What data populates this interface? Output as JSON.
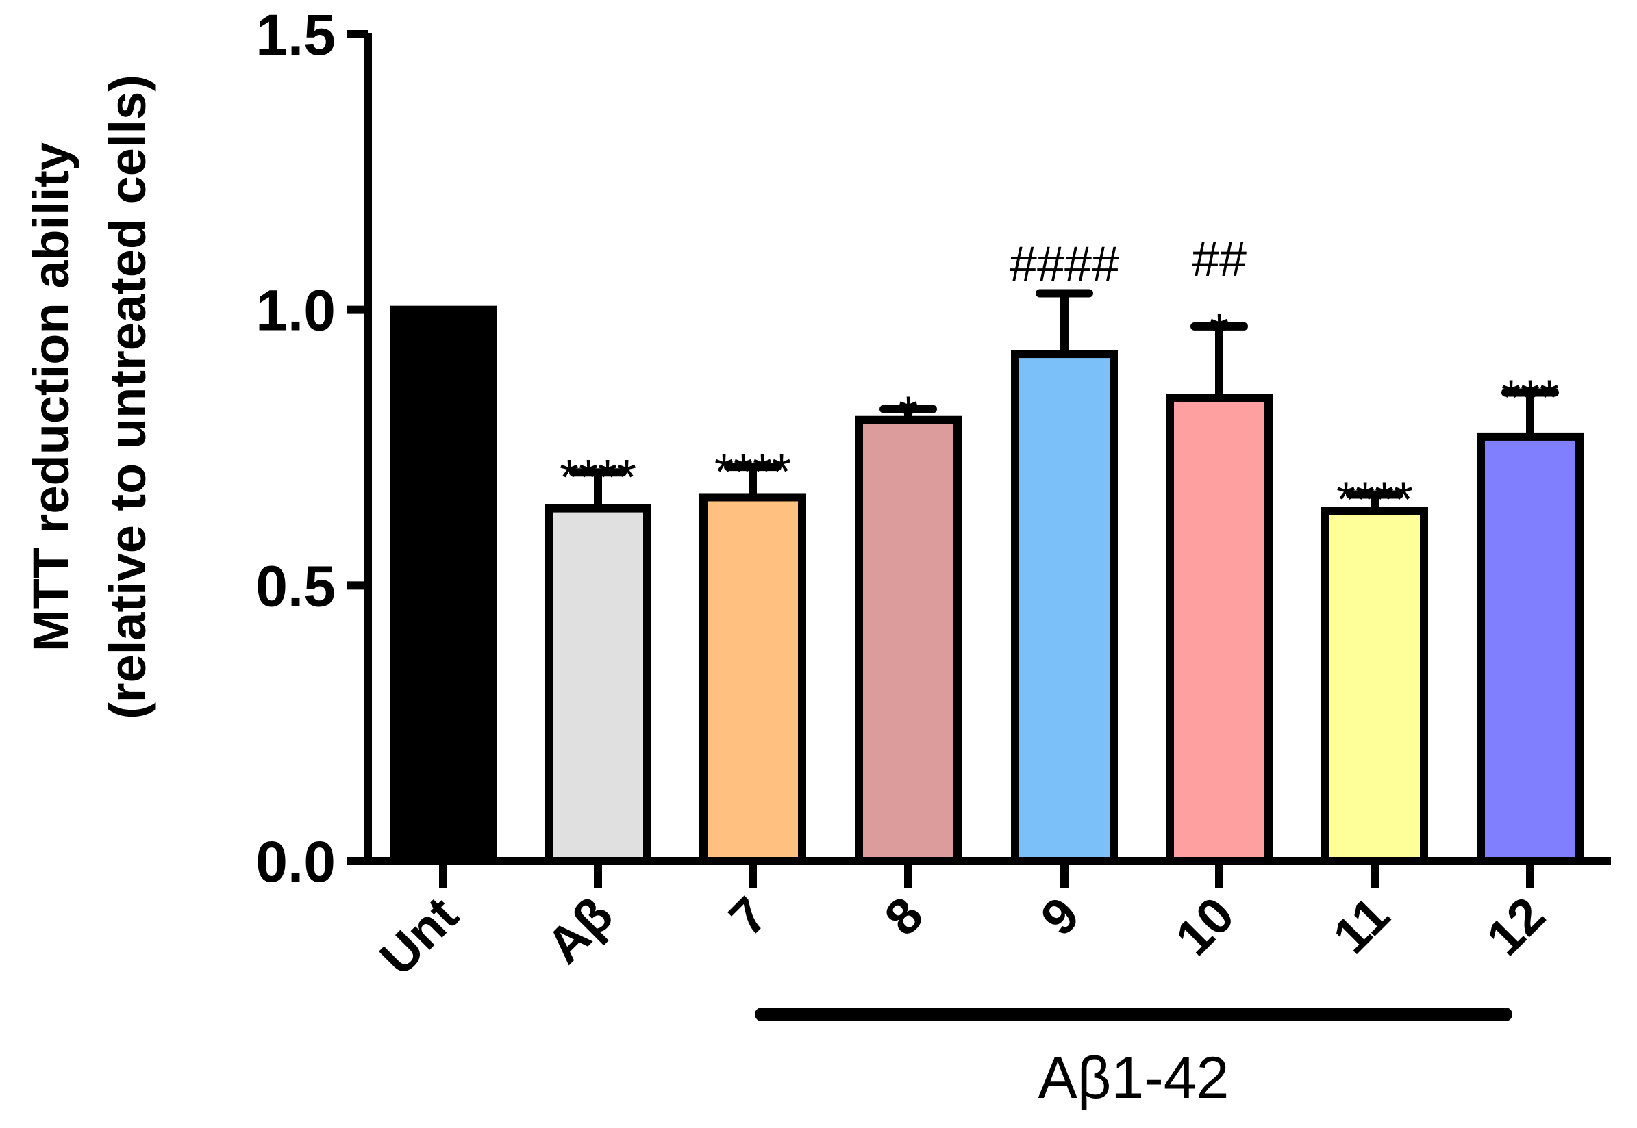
{
  "chart_data": {
    "type": "bar",
    "title": "",
    "xlabel": "",
    "ylabel_line1": "MTT reduction ability",
    "ylabel_line2": "(relative to untreated cells)",
    "ylim": [
      0,
      1.5
    ],
    "yticks": [
      "0.0",
      "0.5",
      "1.0",
      "1.5"
    ],
    "ytick_values": [
      0,
      0.5,
      1.0,
      1.5
    ],
    "categories": [
      "Unt",
      "Aβ",
      "7",
      "8",
      "9",
      "10",
      "11",
      "12"
    ],
    "values": [
      1.0,
      0.64,
      0.66,
      0.8,
      0.92,
      0.84,
      0.635,
      0.77
    ],
    "errors": [
      0,
      0.065,
      0.055,
      0.02,
      0.11,
      0.13,
      0.03,
      0.08
    ],
    "colors": [
      "#000000",
      "#e0e0e0",
      "#ffc080",
      "#dc9c9c",
      "#7cc0fa",
      "#ffa0a0",
      "#ffff99",
      "#8080ff"
    ],
    "significance": [
      "",
      "****",
      "****",
      "*",
      "",
      "*",
      "****",
      "***"
    ],
    "significance_vs_abeta": [
      "",
      "",
      "",
      "",
      "####",
      "##",
      "",
      ""
    ],
    "group_label": "Aβ1-42",
    "group_range": [
      "7",
      "12"
    ]
  }
}
